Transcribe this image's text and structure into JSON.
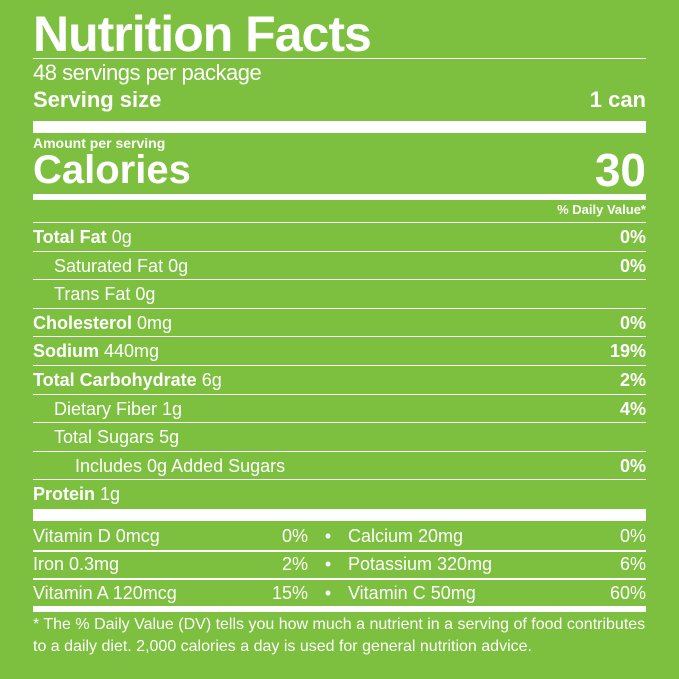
{
  "title": "Nutrition Facts",
  "servings": "48 servings per package",
  "serving_size": {
    "label": "Serving size",
    "value": "1 can"
  },
  "amount_per_serving": "Amount per serving",
  "calories": {
    "label": "Calories",
    "value": "30"
  },
  "dv_header": "% Daily Value*",
  "nutrients": [
    {
      "name": "Total Fat",
      "amount": "0g",
      "dv": "0%",
      "bold": true,
      "indent": 0
    },
    {
      "name": "Saturated Fat",
      "amount": "0g",
      "dv": "0%",
      "bold": false,
      "indent": 1
    },
    {
      "name": "Trans Fat",
      "amount": "0g",
      "dv": "",
      "bold": false,
      "indent": 1
    },
    {
      "name": "Cholesterol",
      "amount": "0mg",
      "dv": "0%",
      "bold": true,
      "indent": 0
    },
    {
      "name": "Sodium",
      "amount": "440mg",
      "dv": "19%",
      "bold": true,
      "indent": 0
    },
    {
      "name": "Total Carbohydrate",
      "amount": "6g",
      "dv": "2%",
      "bold": true,
      "indent": 0
    },
    {
      "name": "Dietary Fiber",
      "amount": "1g",
      "dv": "4%",
      "bold": false,
      "indent": 1
    },
    {
      "name": "Total Sugars",
      "amount": "5g",
      "dv": "",
      "bold": false,
      "indent": 1
    },
    {
      "name": "Includes 0g Added Sugars",
      "amount": "",
      "dv": "0%",
      "bold": false,
      "indent": 2
    },
    {
      "name": "Protein",
      "amount": "1g",
      "dv": "",
      "bold": true,
      "indent": 0
    }
  ],
  "vitamins": [
    {
      "left": {
        "name": "Vitamin D 0mcg",
        "dv": "0%"
      },
      "bullet": "•",
      "right": {
        "name": "Calcium 20mg",
        "dv": "0%"
      }
    },
    {
      "left": {
        "name": "Iron 0.3mg",
        "dv": "2%"
      },
      "bullet": "•",
      "right": {
        "name": "Potassium 320mg",
        "dv": "6%"
      }
    },
    {
      "left": {
        "name": "Vitamin A 120mcg",
        "dv": "15%"
      },
      "bullet": "•",
      "right": {
        "name": "Vitamin C 50mg",
        "dv": "60%"
      }
    }
  ],
  "footnote": "* The % Daily Value (DV) tells you how much a nutrient in a serving of food contributes to a daily diet. 2,000 calories a day is used for general nutrition advice.",
  "colors": {
    "background": "#7dbf3e",
    "text": "#ffffff"
  }
}
